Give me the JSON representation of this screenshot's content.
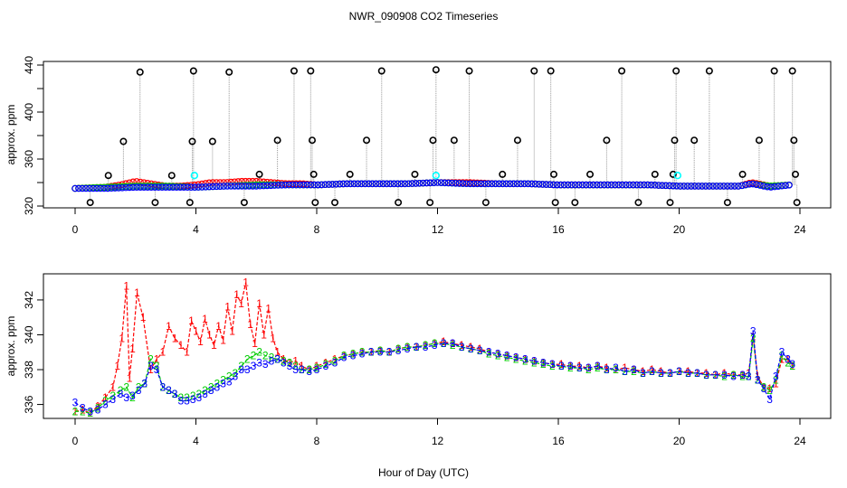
{
  "figure": {
    "title": "NWR_090908  CO2 Timeseries",
    "xlabel": "Hour of Day (UTC)"
  },
  "colors": {
    "black": "#000000",
    "red": "#ff0000",
    "green": "#00cc00",
    "blue": "#0000ff",
    "cyan": "#00ffff",
    "gray": "#999999"
  },
  "chart_data": [
    {
      "type": "scatter",
      "title": "NWR_090908  CO2 Timeseries",
      "xlabel": "",
      "ylabel": "approx. ppm",
      "xlim": [
        0,
        24
      ],
      "ylim": [
        320,
        440
      ],
      "xticks": [
        0,
        4,
        8,
        12,
        16,
        20,
        24
      ],
      "yticks": [
        320,
        360,
        400,
        440
      ],
      "grid": false,
      "legend": "none",
      "spikes": [
        {
          "x": 0.5,
          "y": 323
        },
        {
          "x": 1.1,
          "y": 346
        },
        {
          "x": 1.6,
          "y": 375
        },
        {
          "x": 2.15,
          "y": 434
        },
        {
          "x": 2.65,
          "y": 323
        },
        {
          "x": 3.2,
          "y": 346
        },
        {
          "x": 3.8,
          "y": 323
        },
        {
          "x": 3.88,
          "y": 375
        },
        {
          "x": 3.92,
          "y": 435
        },
        {
          "x": 4.55,
          "y": 375
        },
        {
          "x": 5.1,
          "y": 434
        },
        {
          "x": 5.6,
          "y": 323
        },
        {
          "x": 6.1,
          "y": 347
        },
        {
          "x": 6.7,
          "y": 376
        },
        {
          "x": 7.25,
          "y": 435
        },
        {
          "x": 7.8,
          "y": 435
        },
        {
          "x": 7.85,
          "y": 376
        },
        {
          "x": 7.9,
          "y": 347
        },
        {
          "x": 7.95,
          "y": 323
        },
        {
          "x": 8.6,
          "y": 323
        },
        {
          "x": 9.1,
          "y": 347
        },
        {
          "x": 9.65,
          "y": 376
        },
        {
          "x": 10.15,
          "y": 435
        },
        {
          "x": 10.7,
          "y": 323
        },
        {
          "x": 11.25,
          "y": 347
        },
        {
          "x": 11.75,
          "y": 323
        },
        {
          "x": 11.85,
          "y": 376
        },
        {
          "x": 11.95,
          "y": 436
        },
        {
          "x": 12.55,
          "y": 376
        },
        {
          "x": 13.05,
          "y": 435
        },
        {
          "x": 13.6,
          "y": 323
        },
        {
          "x": 14.15,
          "y": 347
        },
        {
          "x": 14.65,
          "y": 376
        },
        {
          "x": 15.2,
          "y": 435
        },
        {
          "x": 15.75,
          "y": 435
        },
        {
          "x": 15.85,
          "y": 347
        },
        {
          "x": 15.9,
          "y": 323
        },
        {
          "x": 16.55,
          "y": 323
        },
        {
          "x": 17.05,
          "y": 347
        },
        {
          "x": 17.6,
          "y": 376
        },
        {
          "x": 18.1,
          "y": 435
        },
        {
          "x": 18.65,
          "y": 323
        },
        {
          "x": 19.2,
          "y": 347
        },
        {
          "x": 19.7,
          "y": 323
        },
        {
          "x": 19.8,
          "y": 347
        },
        {
          "x": 19.85,
          "y": 376
        },
        {
          "x": 19.9,
          "y": 435
        },
        {
          "x": 20.5,
          "y": 376
        },
        {
          "x": 21.0,
          "y": 435
        },
        {
          "x": 21.6,
          "y": 323
        },
        {
          "x": 22.1,
          "y": 347
        },
        {
          "x": 22.65,
          "y": 376
        },
        {
          "x": 23.15,
          "y": 435
        },
        {
          "x": 23.75,
          "y": 435
        },
        {
          "x": 23.8,
          "y": 376
        },
        {
          "x": 23.85,
          "y": 347
        },
        {
          "x": 23.9,
          "y": 323
        }
      ],
      "cyan_points": [
        {
          "x": 3.95,
          "y": 346
        },
        {
          "x": 11.95,
          "y": 346
        },
        {
          "x": 19.95,
          "y": 346
        }
      ],
      "series": [
        {
          "name": "red",
          "color": "#ff0000",
          "x": [
            0,
            1,
            1.5,
            2,
            2.5,
            3,
            3.5,
            4,
            4.5,
            5,
            5.5,
            6,
            6.5,
            7,
            7.5,
            8,
            9,
            10,
            11,
            12,
            13,
            14,
            15,
            16,
            17,
            18,
            19,
            20,
            21,
            22,
            22.4,
            23,
            23.7
          ],
          "y": [
            335,
            336,
            338,
            341,
            339,
            337,
            337,
            338,
            340,
            340,
            341,
            341,
            340,
            339,
            339,
            338,
            339,
            339,
            339,
            340,
            340,
            339,
            339,
            338,
            338,
            338,
            338,
            337,
            337,
            337,
            340,
            337,
            338
          ]
        },
        {
          "name": "green",
          "color": "#00cc00",
          "x": [
            0,
            1,
            2,
            3,
            4,
            5,
            6,
            7,
            8,
            9,
            10,
            11,
            12,
            13,
            14,
            15,
            16,
            17,
            18,
            19,
            20,
            21,
            22,
            22.4,
            23,
            23.7
          ],
          "y": [
            335,
            336,
            337,
            337,
            336,
            337,
            338,
            338,
            338,
            339,
            339,
            339,
            340,
            339,
            339,
            339,
            338,
            338,
            338,
            338,
            337,
            337,
            337,
            339,
            337,
            338
          ]
        },
        {
          "name": "blue",
          "color": "#0000ff",
          "x": [
            0,
            1,
            2,
            3,
            4,
            5,
            6,
            7,
            8,
            9,
            10,
            11,
            12,
            13,
            14,
            15,
            16,
            17,
            18,
            19,
            20,
            21,
            22,
            22.4,
            23,
            23.7
          ],
          "y": [
            335,
            335,
            336,
            336,
            336,
            337,
            337,
            338,
            338,
            339,
            339,
            339,
            340,
            339,
            339,
            339,
            338,
            338,
            338,
            338,
            337,
            337,
            337,
            339,
            336,
            338
          ]
        }
      ]
    },
    {
      "type": "line",
      "title": "",
      "xlabel": "Hour of Day (UTC)",
      "ylabel": "approx. ppm",
      "xlim": [
        0,
        24
      ],
      "ylim": [
        335.2,
        343.5
      ],
      "xticks": [
        0,
        4,
        8,
        12,
        16,
        20,
        24
      ],
      "yticks": [
        336,
        338,
        340,
        342
      ],
      "grid": false,
      "legend": "none",
      "series": [
        {
          "name": "1",
          "label": "1",
          "color": "#ff0000",
          "x": [
            0,
            0.25,
            0.5,
            0.75,
            1,
            1.25,
            1.4,
            1.55,
            1.7,
            1.8,
            1.9,
            2.05,
            2.25,
            2.5,
            2.7,
            2.9,
            3.1,
            3.3,
            3.5,
            3.7,
            3.85,
            4.0,
            4.15,
            4.3,
            4.45,
            4.6,
            4.75,
            4.9,
            5.05,
            5.2,
            5.35,
            5.5,
            5.65,
            5.8,
            5.95,
            6.1,
            6.25,
            6.4,
            6.55,
            6.7,
            6.9,
            7.1,
            7.3,
            7.5,
            7.75,
            8.0,
            8.3,
            8.6,
            8.9,
            9.2,
            9.5,
            9.8,
            10.1,
            10.4,
            10.7,
            11.0,
            11.3,
            11.6,
            11.9,
            12.2,
            12.5,
            12.8,
            13.1,
            13.4,
            13.7,
            14.0,
            14.3,
            14.6,
            14.9,
            15.2,
            15.5,
            15.8,
            16.1,
            16.4,
            16.7,
            17.0,
            17.3,
            17.6,
            17.9,
            18.2,
            18.5,
            18.8,
            19.1,
            19.4,
            19.7,
            20.0,
            20.3,
            20.6,
            20.9,
            21.2,
            21.5,
            21.8,
            22.1,
            22.3,
            22.45,
            22.6,
            22.8,
            23.0,
            23.2,
            23.4,
            23.6,
            23.75
          ],
          "y": [
            335.6,
            335.7,
            335.5,
            335.9,
            336.4,
            337.0,
            338.2,
            339.8,
            342.8,
            337.5,
            339.2,
            342.4,
            341.0,
            338.0,
            338.6,
            339.0,
            340.5,
            339.8,
            339.4,
            339.0,
            340.8,
            340.2,
            339.6,
            340.9,
            340.0,
            339.4,
            340.5,
            339.7,
            341.6,
            340.2,
            342.3,
            341.8,
            343.0,
            340.6,
            339.5,
            341.8,
            340.0,
            341.5,
            339.8,
            339.0,
            338.6,
            338.4,
            338.5,
            338.2,
            338.0,
            338.2,
            338.4,
            338.6,
            338.8,
            338.9,
            339.0,
            339.0,
            339.1,
            339.0,
            339.2,
            339.3,
            339.3,
            339.4,
            339.5,
            339.6,
            339.5,
            339.4,
            339.3,
            339.2,
            339.0,
            338.9,
            338.8,
            338.7,
            338.6,
            338.5,
            338.4,
            338.3,
            338.3,
            338.2,
            338.2,
            338.1,
            338.2,
            338.1,
            338.0,
            338.1,
            338.0,
            337.9,
            338.0,
            337.9,
            337.8,
            337.9,
            337.9,
            337.8,
            337.8,
            337.7,
            337.8,
            337.7,
            337.7,
            337.8,
            339.9,
            337.6,
            337.0,
            336.9,
            337.2,
            338.6,
            338.6,
            338.2
          ]
        },
        {
          "name": "2",
          "label": "2",
          "color": "#00cc00",
          "x": [
            0,
            0.25,
            0.5,
            0.75,
            1,
            1.25,
            1.5,
            1.7,
            1.9,
            2.1,
            2.3,
            2.5,
            2.7,
            2.9,
            3.1,
            3.3,
            3.5,
            3.7,
            3.9,
            4.1,
            4.3,
            4.5,
            4.7,
            4.9,
            5.1,
            5.3,
            5.5,
            5.7,
            5.9,
            6.1,
            6.3,
            6.5,
            6.7,
            6.9,
            7.1,
            7.3,
            7.5,
            7.75,
            8.0,
            8.3,
            8.6,
            8.9,
            9.2,
            9.5,
            9.8,
            10.1,
            10.4,
            10.7,
            11.0,
            11.3,
            11.6,
            11.9,
            12.2,
            12.5,
            12.8,
            13.1,
            13.4,
            13.7,
            14.0,
            14.3,
            14.6,
            14.9,
            15.2,
            15.5,
            15.8,
            16.1,
            16.4,
            16.7,
            17.0,
            17.3,
            17.6,
            17.9,
            18.2,
            18.5,
            18.8,
            19.1,
            19.4,
            19.7,
            20.0,
            20.3,
            20.6,
            20.9,
            21.2,
            21.5,
            21.8,
            22.1,
            22.3,
            22.45,
            22.6,
            22.8,
            23.0,
            23.2,
            23.4,
            23.6,
            23.75
          ],
          "y": [
            335.6,
            335.6,
            335.5,
            335.8,
            336.2,
            336.5,
            336.8,
            337.0,
            336.4,
            337.0,
            337.2,
            338.6,
            338.2,
            337.0,
            336.8,
            336.6,
            336.4,
            336.4,
            336.5,
            336.6,
            336.8,
            337.0,
            337.2,
            337.4,
            337.6,
            337.8,
            338.2,
            338.6,
            338.8,
            339.0,
            338.8,
            338.7,
            338.6,
            338.5,
            338.4,
            338.2,
            338.0,
            338.0,
            338.1,
            338.3,
            338.5,
            338.8,
            338.9,
            339.0,
            339.0,
            339.1,
            339.0,
            339.2,
            339.3,
            339.3,
            339.4,
            339.5,
            339.5,
            339.4,
            339.3,
            339.2,
            339.1,
            338.9,
            338.8,
            338.7,
            338.6,
            338.5,
            338.4,
            338.3,
            338.2,
            338.2,
            338.1,
            338.1,
            338.0,
            338.1,
            338.0,
            338.0,
            337.9,
            337.9,
            337.8,
            337.9,
            337.8,
            337.8,
            337.9,
            337.8,
            337.8,
            337.7,
            337.7,
            337.6,
            337.7,
            337.6,
            337.6,
            339.8,
            337.4,
            337.0,
            336.8,
            337.4,
            338.8,
            338.4,
            338.2
          ]
        },
        {
          "name": "3",
          "label": "3",
          "color": "#0000ff",
          "x": [
            0,
            0.25,
            0.5,
            0.75,
            1,
            1.25,
            1.5,
            1.7,
            1.9,
            2.1,
            2.3,
            2.5,
            2.7,
            2.9,
            3.1,
            3.3,
            3.5,
            3.7,
            3.9,
            4.1,
            4.3,
            4.5,
            4.7,
            4.9,
            5.1,
            5.3,
            5.5,
            5.7,
            5.9,
            6.1,
            6.3,
            6.5,
            6.7,
            6.9,
            7.1,
            7.3,
            7.5,
            7.75,
            8.0,
            8.3,
            8.6,
            8.9,
            9.2,
            9.5,
            9.8,
            10.1,
            10.4,
            10.7,
            11.0,
            11.3,
            11.6,
            11.9,
            12.2,
            12.5,
            12.8,
            13.1,
            13.4,
            13.7,
            14.0,
            14.3,
            14.6,
            14.9,
            15.2,
            15.5,
            15.8,
            16.1,
            16.4,
            16.7,
            17.0,
            17.3,
            17.6,
            17.9,
            18.2,
            18.5,
            18.8,
            19.1,
            19.4,
            19.7,
            20.0,
            20.3,
            20.6,
            20.9,
            21.2,
            21.5,
            21.8,
            22.1,
            22.3,
            22.45,
            22.6,
            22.8,
            23.0,
            23.2,
            23.4,
            23.6,
            23.75
          ],
          "y": [
            336.1,
            335.8,
            335.6,
            335.7,
            336.0,
            336.3,
            336.6,
            336.4,
            336.5,
            336.8,
            337.2,
            338.2,
            338.0,
            337.0,
            336.8,
            336.6,
            336.2,
            336.2,
            336.3,
            336.4,
            336.6,
            336.8,
            337.0,
            337.2,
            337.3,
            337.6,
            338.0,
            338.0,
            338.2,
            338.4,
            338.3,
            338.5,
            338.6,
            338.4,
            338.2,
            338.0,
            338.0,
            337.9,
            338.0,
            338.2,
            338.4,
            338.7,
            338.8,
            338.9,
            339.0,
            339.0,
            339.0,
            339.1,
            339.2,
            339.3,
            339.3,
            339.4,
            339.5,
            339.5,
            339.3,
            339.2,
            339.1,
            339.0,
            338.9,
            338.8,
            338.7,
            338.6,
            338.5,
            338.4,
            338.3,
            338.2,
            338.2,
            338.1,
            338.1,
            338.2,
            338.0,
            338.1,
            337.9,
            338.0,
            337.8,
            337.9,
            337.8,
            337.8,
            337.9,
            337.8,
            337.8,
            337.7,
            337.7,
            337.7,
            337.6,
            337.7,
            337.6,
            340.2,
            337.4,
            336.9,
            336.3,
            337.6,
            339.0,
            338.6,
            338.3
          ]
        }
      ]
    }
  ]
}
